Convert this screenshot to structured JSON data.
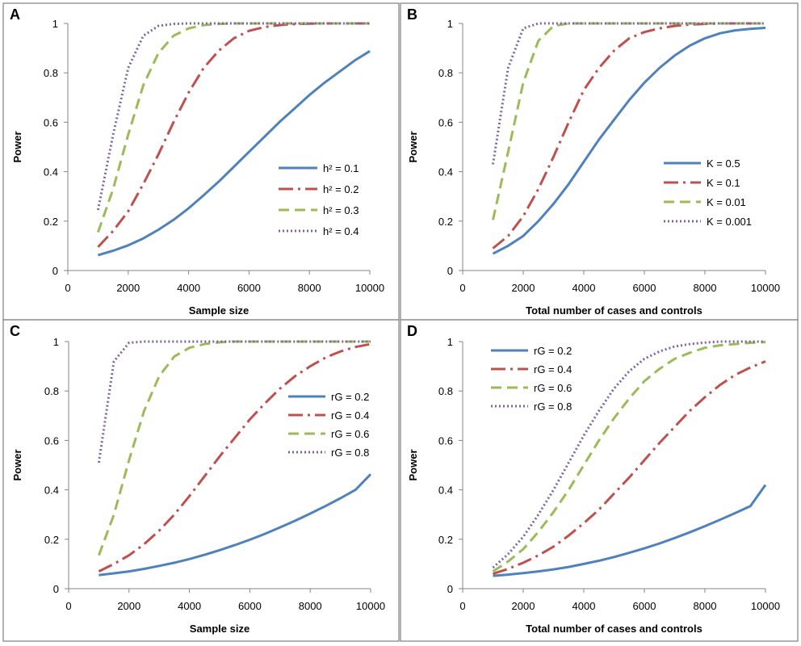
{
  "chart_data": [
    {
      "panel": "A",
      "type": "line",
      "xlabel": "Sample size",
      "ylabel": "Power",
      "xlim": [
        0,
        10000
      ],
      "ylim": [
        0,
        1
      ],
      "xticks": [
        0,
        2000,
        4000,
        6000,
        8000,
        10000
      ],
      "yticks": [
        0,
        0.2,
        0.4,
        0.6,
        0.8,
        1
      ],
      "legend": "right",
      "x": [
        1000,
        1500,
        2000,
        2500,
        3000,
        3500,
        4000,
        4500,
        5000,
        5500,
        6000,
        6500,
        7000,
        7500,
        8000,
        8500,
        9000,
        9500,
        10000
      ],
      "series": [
        {
          "name": "h² = 0.1",
          "values": [
            0.062,
            0.08,
            0.102,
            0.13,
            0.165,
            0.205,
            0.252,
            0.305,
            0.36,
            0.42,
            0.48,
            0.54,
            0.6,
            0.655,
            0.71,
            0.76,
            0.805,
            0.85,
            0.888
          ]
        },
        {
          "name": "h² = 0.2",
          "values": [
            0.095,
            0.16,
            0.24,
            0.35,
            0.47,
            0.6,
            0.72,
            0.82,
            0.89,
            0.94,
            0.97,
            0.985,
            0.993,
            0.997,
            0.999,
            1,
            1,
            1,
            1
          ]
        },
        {
          "name": "h² = 0.3",
          "values": [
            0.155,
            0.33,
            0.55,
            0.75,
            0.88,
            0.95,
            0.98,
            0.993,
            0.998,
            1,
            1,
            1,
            1,
            1,
            1,
            1,
            1,
            1,
            1
          ]
        },
        {
          "name": "h² = 0.4",
          "values": [
            0.245,
            0.55,
            0.82,
            0.95,
            0.99,
            0.998,
            1,
            1,
            1,
            1,
            1,
            1,
            1,
            1,
            1,
            1,
            1,
            1,
            1
          ]
        }
      ]
    },
    {
      "panel": "B",
      "type": "line",
      "xlabel": "Total number of cases and controls",
      "ylabel": "Power",
      "xlim": [
        0,
        10000
      ],
      "ylim": [
        0,
        1
      ],
      "xticks": [
        0,
        2000,
        4000,
        6000,
        8000,
        10000
      ],
      "yticks": [
        0,
        0.2,
        0.4,
        0.6,
        0.8,
        1
      ],
      "legend": "right",
      "x": [
        1000,
        1500,
        2000,
        2500,
        3000,
        3500,
        4000,
        4500,
        5000,
        5500,
        6000,
        6500,
        7000,
        7500,
        8000,
        8500,
        9000,
        9500,
        10000
      ],
      "series": [
        {
          "name": "K = 0.5",
          "values": [
            0.068,
            0.1,
            0.14,
            0.2,
            0.27,
            0.35,
            0.44,
            0.53,
            0.61,
            0.69,
            0.76,
            0.82,
            0.87,
            0.91,
            0.94,
            0.96,
            0.972,
            0.978,
            0.982
          ]
        },
        {
          "name": "K = 0.1",
          "values": [
            0.09,
            0.14,
            0.22,
            0.33,
            0.46,
            0.6,
            0.73,
            0.82,
            0.89,
            0.94,
            0.965,
            0.98,
            0.99,
            0.995,
            0.998,
            1,
            1,
            1,
            1
          ]
        },
        {
          "name": "K = 0.01",
          "values": [
            0.205,
            0.48,
            0.76,
            0.93,
            0.99,
            1,
            1,
            1,
            1,
            1,
            1,
            1,
            1,
            1,
            1,
            1,
            1,
            1,
            1
          ]
        },
        {
          "name": "K = 0.001",
          "values": [
            0.43,
            0.82,
            0.98,
            1,
            1,
            1,
            1,
            1,
            1,
            1,
            1,
            1,
            1,
            1,
            1,
            1,
            1,
            1,
            1
          ]
        }
      ]
    },
    {
      "panel": "C",
      "type": "line",
      "xlabel": "Sample size",
      "ylabel": "Power",
      "xlim": [
        0,
        10000
      ],
      "ylim": [
        0,
        1
      ],
      "xticks": [
        0,
        2000,
        4000,
        6000,
        8000,
        10000
      ],
      "yticks": [
        0,
        0.2,
        0.4,
        0.6,
        0.8,
        1
      ],
      "legend": "right",
      "x": [
        1000,
        1500,
        2000,
        2500,
        3000,
        3500,
        4000,
        4500,
        5000,
        5500,
        6000,
        6500,
        7000,
        7500,
        8000,
        8500,
        9000,
        9500,
        10000
      ],
      "series": [
        {
          "name": "rG = 0.2",
          "values": [
            0.055,
            0.062,
            0.07,
            0.08,
            0.092,
            0.105,
            0.12,
            0.137,
            0.156,
            0.176,
            0.198,
            0.222,
            0.248,
            0.275,
            0.304,
            0.334,
            0.366,
            0.4,
            0.463
          ]
        },
        {
          "name": "rG = 0.4",
          "values": [
            0.07,
            0.1,
            0.135,
            0.18,
            0.235,
            0.3,
            0.375,
            0.455,
            0.535,
            0.61,
            0.685,
            0.75,
            0.81,
            0.86,
            0.9,
            0.935,
            0.96,
            0.978,
            0.99
          ]
        },
        {
          "name": "rG = 0.6",
          "values": [
            0.135,
            0.3,
            0.52,
            0.72,
            0.86,
            0.94,
            0.975,
            0.99,
            0.997,
            1,
            1,
            1,
            1,
            1,
            1,
            1,
            1,
            1,
            1
          ]
        },
        {
          "name": "rG = 0.8",
          "values": [
            0.51,
            0.92,
            0.995,
            1,
            1,
            1,
            1,
            1,
            1,
            1,
            1,
            1,
            1,
            1,
            1,
            1,
            1,
            1,
            1
          ]
        }
      ]
    },
    {
      "panel": "D",
      "type": "line",
      "xlabel": "Total number of cases and controls",
      "ylabel": "Power",
      "xlim": [
        0,
        10000
      ],
      "ylim": [
        0,
        1
      ],
      "xticks": [
        0,
        2000,
        4000,
        6000,
        8000,
        10000
      ],
      "yticks": [
        0,
        0.2,
        0.4,
        0.6,
        0.8,
        1
      ],
      "legend": "top-left",
      "x": [
        1000,
        1500,
        2000,
        2500,
        3000,
        3500,
        4000,
        4500,
        5000,
        5500,
        6000,
        6500,
        7000,
        7500,
        8000,
        8500,
        9000,
        9500,
        10000
      ],
      "series": [
        {
          "name": "rG = 0.2",
          "values": [
            0.052,
            0.057,
            0.063,
            0.07,
            0.078,
            0.088,
            0.1,
            0.113,
            0.128,
            0.145,
            0.163,
            0.183,
            0.205,
            0.228,
            0.253,
            0.279,
            0.306,
            0.334,
            0.42
          ]
        },
        {
          "name": "rG = 0.4",
          "values": [
            0.06,
            0.08,
            0.105,
            0.135,
            0.17,
            0.215,
            0.265,
            0.32,
            0.385,
            0.45,
            0.52,
            0.59,
            0.655,
            0.72,
            0.775,
            0.825,
            0.865,
            0.895,
            0.92
          ]
        },
        {
          "name": "rG = 0.6",
          "values": [
            0.07,
            0.11,
            0.16,
            0.23,
            0.31,
            0.4,
            0.5,
            0.6,
            0.69,
            0.77,
            0.84,
            0.89,
            0.93,
            0.955,
            0.975,
            0.985,
            0.99,
            0.995,
            0.998
          ]
        },
        {
          "name": "rG = 0.8",
          "values": [
            0.085,
            0.14,
            0.21,
            0.3,
            0.4,
            0.51,
            0.62,
            0.72,
            0.81,
            0.88,
            0.93,
            0.96,
            0.98,
            0.99,
            0.996,
            1,
            1,
            1,
            1
          ]
        }
      ]
    }
  ],
  "series_styles": [
    {
      "color": "#4f81bd",
      "dash": "",
      "width": 3
    },
    {
      "color": "#c0504d",
      "dash": "18,6,3,6",
      "width": 3
    },
    {
      "color": "#9bbb59",
      "dash": "13,7",
      "width": 3
    },
    {
      "color": "#8064a2",
      "dash": "2,3",
      "width": 3
    }
  ]
}
